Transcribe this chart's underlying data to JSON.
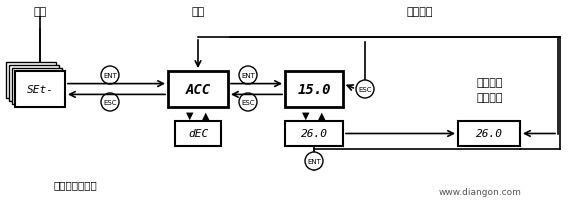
{
  "bg_color": "#ffffff",
  "label_caidan": "菜单",
  "label_canshu": "参数",
  "label_zhihuo": "值或赋值",
  "label_flash1": "闪烁１次",
  "label_flash2": "（保存）",
  "label_next": "（下一个参数）",
  "label_website": "www.diangon.com",
  "set_text": "SEt-",
  "acc_text": "ACC",
  "dec_text": "dEC",
  "val1_text": "15.0",
  "val2_text": "26.0",
  "val3_text": "26.0",
  "ent_label": "ENT",
  "esc_label": "ESC"
}
